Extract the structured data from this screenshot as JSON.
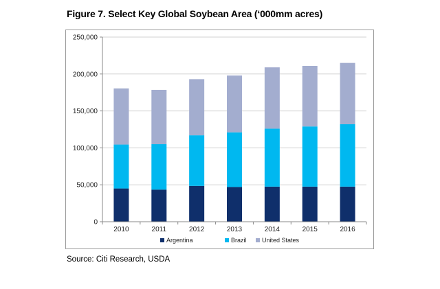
{
  "title": "Figure 7. Select Key Global Soybean Area (‘000mm acres)",
  "source": "Source: Citi Research, USDA",
  "colors": {
    "argentina": "#0f2f6b",
    "brazil": "#00b8f0",
    "united_states": "#a3adcf"
  },
  "chart_data": {
    "type": "bar",
    "stacked": true,
    "categories": [
      "2010",
      "2011",
      "2012",
      "2013",
      "2014",
      "2015",
      "2016"
    ],
    "series": [
      {
        "name": "Argentina",
        "values": [
          45000,
          43500,
          48500,
          47000,
          47500,
          47500,
          47500
        ]
      },
      {
        "name": "Brazil",
        "values": [
          59500,
          61500,
          68500,
          74000,
          78500,
          81500,
          84500
        ]
      },
      {
        "name": "United States",
        "values": [
          76000,
          73500,
          76000,
          77000,
          83000,
          82000,
          83000
        ]
      }
    ],
    "ylim": [
      0,
      250000
    ],
    "yticks": [
      "0",
      "50,000",
      "100,000",
      "150,000",
      "200,000",
      "250,000"
    ],
    "ytick_values": [
      0,
      50000,
      100000,
      150000,
      200000,
      250000
    ],
    "grid": true,
    "legend": "bottom"
  }
}
